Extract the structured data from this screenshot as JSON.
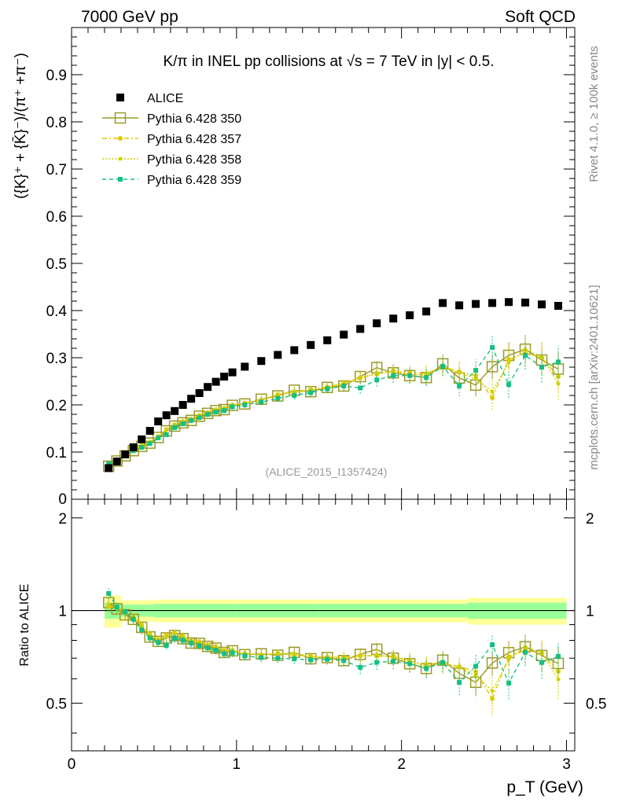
{
  "header": {
    "energy": "7000 GeV pp",
    "category": "Soft QCD"
  },
  "side_labels": {
    "rivet": "Rivet 4.1.0, ≥ 100k events",
    "mcplots": "mcplots.cern.ch [arXiv:2401.10621]"
  },
  "colors": {
    "alice": "#000000",
    "p350": "#9a9a28",
    "p357": "#e0c800",
    "p358": "#d0d000",
    "p359": "#14c080",
    "band_outer": "#ffff99",
    "band_inner": "#99ff99"
  },
  "chart_data": [
    {
      "type": "scatter",
      "panel": "main",
      "title": "K/π in INEL pp collisions at √s =  7 TeV in |y| < 0.5.",
      "watermark": "(ALICE_2015_I1357424)",
      "ylabel": "({K}⁺ + {K̄}⁻)/(π⁺ +π⁻)",
      "xlim": [
        0,
        3.05
      ],
      "ylim": [
        0,
        1.0
      ],
      "yticks": [
        0.1,
        0.2,
        0.3,
        0.4,
        0.5,
        0.6,
        0.7,
        0.8,
        0.9
      ],
      "ytick_labels": [
        "0.1",
        "0.2",
        "0.3",
        "0.4",
        "0.5",
        "0.6",
        "0.7",
        "0.8",
        "0.9"
      ],
      "bottom_label": "0",
      "x": [
        0.225,
        0.275,
        0.325,
        0.375,
        0.425,
        0.475,
        0.525,
        0.575,
        0.625,
        0.675,
        0.725,
        0.775,
        0.825,
        0.875,
        0.925,
        0.975,
        1.05,
        1.15,
        1.25,
        1.35,
        1.45,
        1.55,
        1.65,
        1.75,
        1.85,
        1.95,
        2.05,
        2.15,
        2.25,
        2.35,
        2.45,
        2.55,
        2.65,
        2.75,
        2.85,
        2.95
      ],
      "series": [
        {
          "name": "ALICE",
          "values": [
            0.066,
            0.08,
            0.095,
            0.11,
            0.127,
            0.145,
            0.165,
            0.178,
            0.187,
            0.2,
            0.213,
            0.225,
            0.238,
            0.249,
            0.26,
            0.269,
            0.281,
            0.293,
            0.306,
            0.316,
            0.327,
            0.337,
            0.349,
            0.361,
            0.373,
            0.383,
            0.39,
            0.398,
            0.416,
            0.411,
            0.414,
            0.416,
            0.418,
            0.417,
            0.413,
            0.41
          ],
          "errors": [
            0.004,
            0.004,
            0.004,
            0.004,
            0.005,
            0.005,
            0.005,
            0.005,
            0.006,
            0.006,
            0.006,
            0.006,
            0.007,
            0.007,
            0.007,
            0.007,
            0.008,
            0.008,
            0.009,
            0.009,
            0.009,
            0.01,
            0.01,
            0.011,
            0.011,
            0.011,
            0.012,
            0.012,
            0.013,
            0.013,
            0.013,
            0.014,
            0.014,
            0.014,
            0.014,
            0.014
          ]
        },
        {
          "name": "Pythia 6.428 350",
          "values": [
            0.07,
            0.081,
            0.092,
            0.103,
            0.112,
            0.119,
            0.131,
            0.145,
            0.155,
            0.162,
            0.167,
            0.176,
            0.182,
            0.188,
            0.19,
            0.199,
            0.202,
            0.212,
            0.219,
            0.231,
            0.228,
            0.237,
            0.24,
            0.26,
            0.279,
            0.268,
            0.262,
            0.258,
            0.287,
            0.257,
            0.242,
            0.281,
            0.305,
            0.318,
            0.295,
            0.276
          ],
          "errors": [
            0.003,
            0.003,
            0.003,
            0.003,
            0.004,
            0.004,
            0.004,
            0.004,
            0.005,
            0.005,
            0.005,
            0.005,
            0.006,
            0.006,
            0.006,
            0.006,
            0.006,
            0.007,
            0.007,
            0.008,
            0.008,
            0.009,
            0.01,
            0.012,
            0.014,
            0.015,
            0.017,
            0.018,
            0.02,
            0.022,
            0.024,
            0.026,
            0.028,
            0.03,
            0.032,
            0.034
          ]
        },
        {
          "name": "Pythia 6.428 357",
          "values": [
            0.068,
            0.082,
            0.094,
            0.104,
            0.114,
            0.121,
            0.133,
            0.148,
            0.158,
            0.165,
            0.17,
            0.178,
            0.184,
            0.19,
            0.193,
            0.2,
            0.204,
            0.21,
            0.222,
            0.226,
            0.232,
            0.238,
            0.246,
            0.258,
            0.265,
            0.272,
            0.268,
            0.266,
            0.282,
            0.27,
            0.262,
            0.215,
            0.296,
            0.31,
            0.3,
            0.26
          ],
          "errors": [
            0.003,
            0.003,
            0.003,
            0.003,
            0.004,
            0.004,
            0.004,
            0.004,
            0.005,
            0.005,
            0.005,
            0.005,
            0.006,
            0.006,
            0.006,
            0.006,
            0.006,
            0.007,
            0.007,
            0.008,
            0.008,
            0.009,
            0.01,
            0.012,
            0.014,
            0.015,
            0.017,
            0.018,
            0.02,
            0.022,
            0.024,
            0.026,
            0.028,
            0.03,
            0.032,
            0.034
          ]
        },
        {
          "name": "Pythia 6.428 358",
          "values": [
            0.069,
            0.081,
            0.093,
            0.105,
            0.113,
            0.122,
            0.132,
            0.147,
            0.157,
            0.164,
            0.168,
            0.177,
            0.183,
            0.189,
            0.192,
            0.198,
            0.203,
            0.211,
            0.221,
            0.229,
            0.233,
            0.236,
            0.244,
            0.256,
            0.268,
            0.27,
            0.265,
            0.263,
            0.28,
            0.268,
            0.255,
            0.228,
            0.29,
            0.318,
            0.302,
            0.245
          ],
          "errors": [
            0.003,
            0.003,
            0.003,
            0.003,
            0.004,
            0.004,
            0.004,
            0.004,
            0.005,
            0.005,
            0.005,
            0.005,
            0.006,
            0.006,
            0.006,
            0.006,
            0.006,
            0.007,
            0.007,
            0.008,
            0.008,
            0.009,
            0.01,
            0.012,
            0.014,
            0.015,
            0.017,
            0.018,
            0.02,
            0.022,
            0.024,
            0.026,
            0.028,
            0.03,
            0.032,
            0.034
          ]
        },
        {
          "name": "Pythia 6.428 359",
          "values": [
            0.075,
            0.082,
            0.094,
            0.103,
            0.11,
            0.118,
            0.13,
            0.137,
            0.152,
            0.16,
            0.167,
            0.173,
            0.18,
            0.185,
            0.188,
            0.196,
            0.2,
            0.206,
            0.214,
            0.22,
            0.226,
            0.234,
            0.24,
            0.236,
            0.253,
            0.262,
            0.262,
            0.258,
            0.282,
            0.24,
            0.273,
            0.322,
            0.243,
            0.305,
            0.28,
            0.291
          ],
          "errors": [
            0.003,
            0.003,
            0.003,
            0.003,
            0.004,
            0.004,
            0.004,
            0.004,
            0.005,
            0.005,
            0.005,
            0.005,
            0.006,
            0.006,
            0.006,
            0.006,
            0.006,
            0.007,
            0.007,
            0.008,
            0.008,
            0.009,
            0.01,
            0.012,
            0.014,
            0.015,
            0.017,
            0.018,
            0.02,
            0.022,
            0.024,
            0.026,
            0.028,
            0.03,
            0.032,
            0.034
          ]
        }
      ]
    },
    {
      "type": "line",
      "panel": "ratio",
      "ylabel": "Ratio to ALICE",
      "xlabel": "p_T (GeV)",
      "xlim": [
        0,
        3.05
      ],
      "ylim": [
        0.35,
        2.3
      ],
      "yticks": [
        0.5,
        1,
        2
      ],
      "ytick_labels": [
        "0.5",
        "1",
        "2"
      ],
      "xticks": [
        0,
        1,
        2,
        3
      ],
      "xtick_labels": [
        "0",
        "1",
        "2",
        "3"
      ],
      "reference_line": 1,
      "band_edges": [
        0.2,
        0.3,
        0.5,
        1.0,
        1.5,
        2.4,
        3.0
      ],
      "band_inner_halfwidth": [
        0.06,
        0.045,
        0.05,
        0.05,
        0.05,
        0.06
      ],
      "band_outer_halfwidth": [
        0.12,
        0.08,
        0.085,
        0.085,
        0.085,
        0.1
      ]
    }
  ]
}
